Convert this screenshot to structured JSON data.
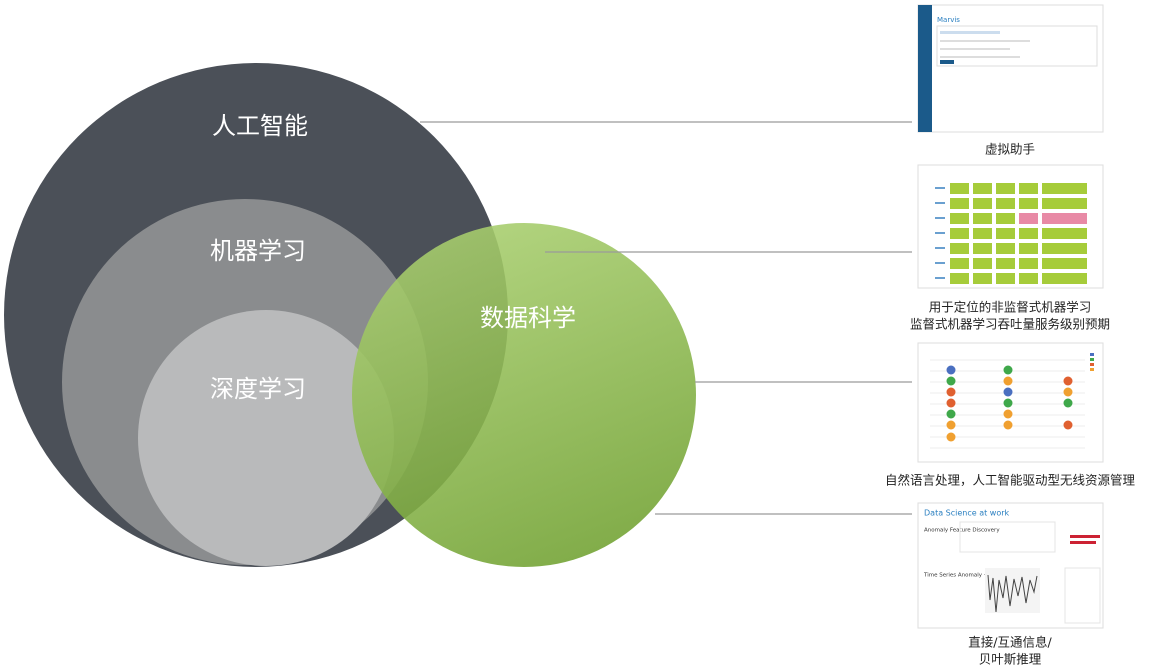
{
  "circles": [
    {
      "label": "人工智能"
    },
    {
      "label": "机器学习"
    },
    {
      "label": "深度学习"
    },
    {
      "label": "数据科学"
    }
  ],
  "examples": [
    {
      "caption": [
        "虚拟助手"
      ],
      "screen": {
        "title": "Marvis"
      }
    },
    {
      "caption": [
        "用于定位的非监督式机器学习",
        "监督式机器学习吞吐量服务级别预期"
      ]
    },
    {
      "caption": [
        "自然语言处理，人工智能驱动型无线资源管理"
      ]
    },
    {
      "caption": [
        "直接/互通信息/",
        "贝叶斯推理"
      ],
      "screen": {
        "title": "Data Science at work",
        "sections": [
          "Anomaly Feature Discovery",
          "Time Series Anomaly + Correlation"
        ]
      }
    }
  ]
}
